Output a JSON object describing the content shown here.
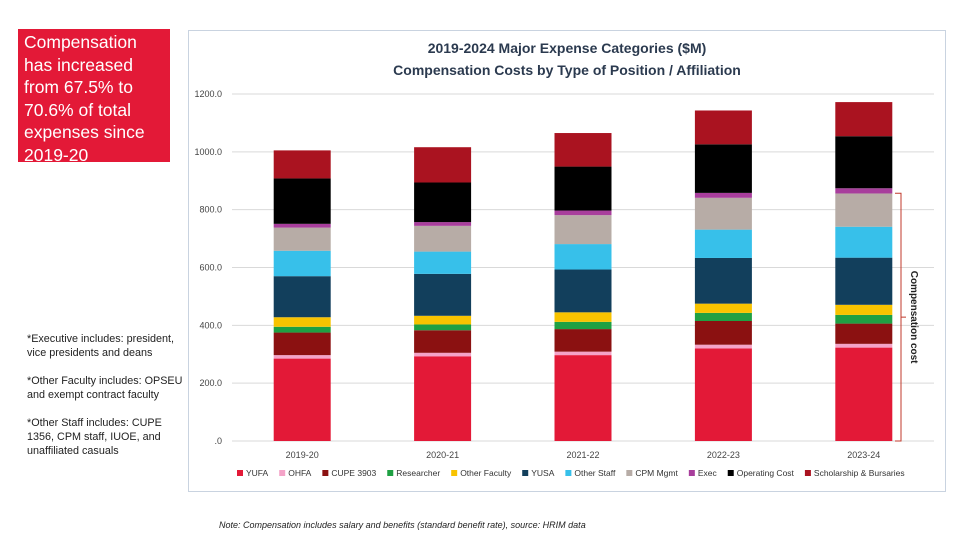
{
  "callout": {
    "text": "Compensation has increased from 67.5% to 70.6% of total expenses since 2019-20"
  },
  "notes": [
    "*Executive includes: president, vice presidents and deans",
    "*Other Faculty includes: OPSEU and exempt contract faculty",
    "*Other Staff includes: CUPE 1356, CPM staff, IUOE, and unaffiliated casuals"
  ],
  "footnote": "Note: Compensation includes salary and benefits (standard benefit rate), source: HRIM data",
  "chart_data": {
    "type": "bar",
    "stacked": true,
    "title": "2019-2024 Major Expense Categories ($M)",
    "subtitle": "Compensation Costs by Type of Position / Affiliation",
    "categories": [
      "2019-20",
      "2020-21",
      "2021-22",
      "2022-23",
      "2023-24"
    ],
    "ylim": [
      0,
      1200
    ],
    "yticks": [
      0,
      200,
      400,
      600,
      800,
      1000,
      1200
    ],
    "ytick_labels": [
      ".0",
      "200.0",
      "400.0",
      "600.0",
      "800.0",
      "1000.0",
      "1200.0"
    ],
    "grid": true,
    "legend": "bottom",
    "series": [
      {
        "name": "YUFA",
        "color": "#e31937",
        "values": [
          285,
          293,
          297,
          320,
          323
        ]
      },
      {
        "name": "OHFA",
        "color": "#f4a3c8",
        "values": [
          12,
          12,
          12,
          13,
          13
        ]
      },
      {
        "name": "CUPE 3903",
        "color": "#8b1111",
        "values": [
          78,
          78,
          78,
          82,
          70
        ]
      },
      {
        "name": "Researcher",
        "color": "#1fa043",
        "values": [
          20,
          20,
          25,
          28,
          30
        ]
      },
      {
        "name": "Other Faculty",
        "color": "#f8c300",
        "values": [
          33,
          30,
          33,
          32,
          35
        ]
      },
      {
        "name": "YUSA",
        "color": "#123f5c",
        "values": [
          142,
          145,
          148,
          158,
          163
        ]
      },
      {
        "name": "Other Staff",
        "color": "#37c0ea",
        "values": [
          88,
          77,
          88,
          98,
          107
        ]
      },
      {
        "name": "CPM Mgmt",
        "color": "#b7aca6",
        "values": [
          80,
          89,
          100,
          110,
          115
        ]
      },
      {
        "name": "Exec",
        "color": "#a83e9c",
        "values": [
          13,
          13,
          16,
          17,
          18
        ]
      },
      {
        "name": "Operating Cost",
        "color": "#000000",
        "values": [
          157,
          137,
          152,
          168,
          180
        ]
      },
      {
        "name": "Scholarship & Bursaries",
        "color": "#aa1320",
        "values": [
          97,
          122,
          116,
          117,
          118
        ]
      }
    ],
    "bracket_label": "Compensation cost"
  }
}
